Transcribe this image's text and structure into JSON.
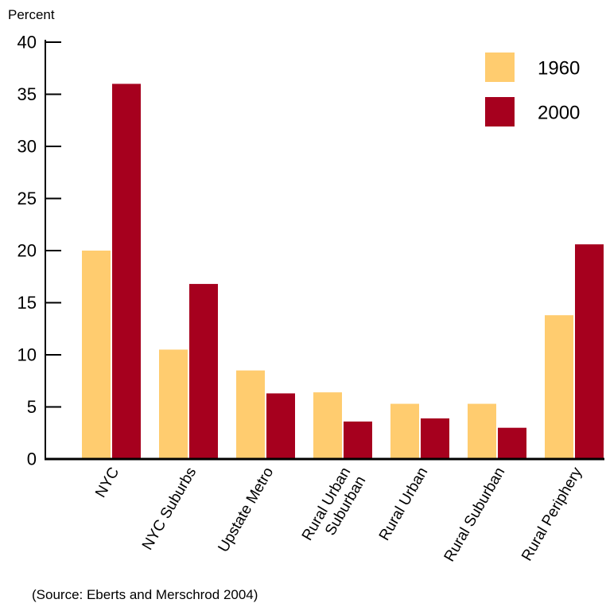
{
  "chart_data": {
    "type": "bar",
    "ylabel": "Percent",
    "ylim": [
      0,
      40
    ],
    "yticks": [
      0,
      5,
      10,
      15,
      20,
      25,
      30,
      35,
      40
    ],
    "grid": false,
    "legend_position": "top-right",
    "categories": [
      [
        "NYC"
      ],
      [
        "NYC Suburbs"
      ],
      [
        "Upstate Metro"
      ],
      [
        "Rural Urban",
        "Suburban"
      ],
      [
        "Rural Urban"
      ],
      [
        "Rural Suburban"
      ],
      [
        "Rural Periphery"
      ]
    ],
    "series": [
      {
        "name": "1960",
        "color": "#FFCC6F",
        "values": [
          20.0,
          10.5,
          8.5,
          6.4,
          5.3,
          5.3,
          13.8
        ]
      },
      {
        "name": "2000",
        "color": "#A6001E",
        "values": [
          36.0,
          16.8,
          6.3,
          3.6,
          3.9,
          3.0,
          20.6
        ]
      }
    ]
  },
  "source": "(Source: Eberts and Merschrod 2004)"
}
